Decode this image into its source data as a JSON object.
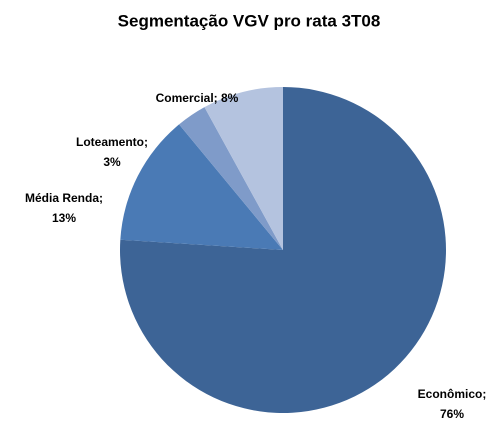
{
  "chart_data": {
    "type": "pie",
    "title": "Segmentação VGV pro rata 3T08",
    "values": [
      76,
      13,
      3,
      8
    ],
    "value_labels": [
      [
        "Econômico;",
        "76%"
      ],
      [
        "Média Renda;",
        "13%"
      ],
      [
        "Loteamento;",
        "3%"
      ],
      [
        "Comercial; 8%"
      ]
    ],
    "colors": [
      "#3d6496",
      "#4a7ab5",
      "#7f9bc9",
      "#b4c3df"
    ]
  }
}
